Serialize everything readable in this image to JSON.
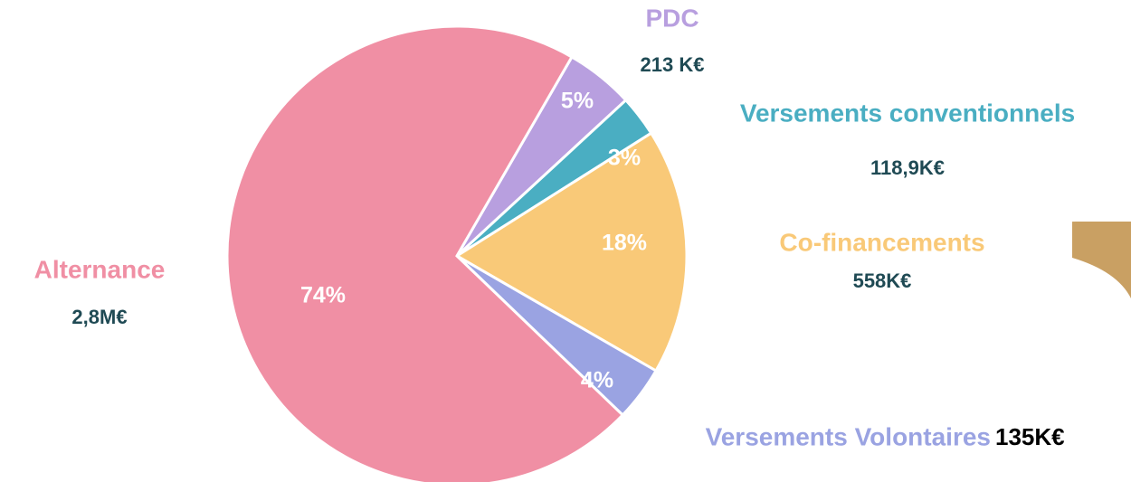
{
  "chart_data": {
    "type": "pie",
    "categories": [
      "PDC",
      "Versements conventionnels",
      "Co-financements",
      "Versements Volontaires",
      "Alternance"
    ],
    "values": [
      5,
      3,
      18,
      4,
      74
    ],
    "value_labels": [
      "5%",
      "3%",
      "18%",
      "4%",
      "74%"
    ],
    "amounts": [
      "213 K€",
      "118,9K€",
      "558K€",
      "135K€",
      "2,8M€"
    ],
    "colors": [
      "#b89fdf",
      "#4aaec2",
      "#f9c978",
      "#9aa3e2",
      "#f08fa4"
    ]
  }
}
